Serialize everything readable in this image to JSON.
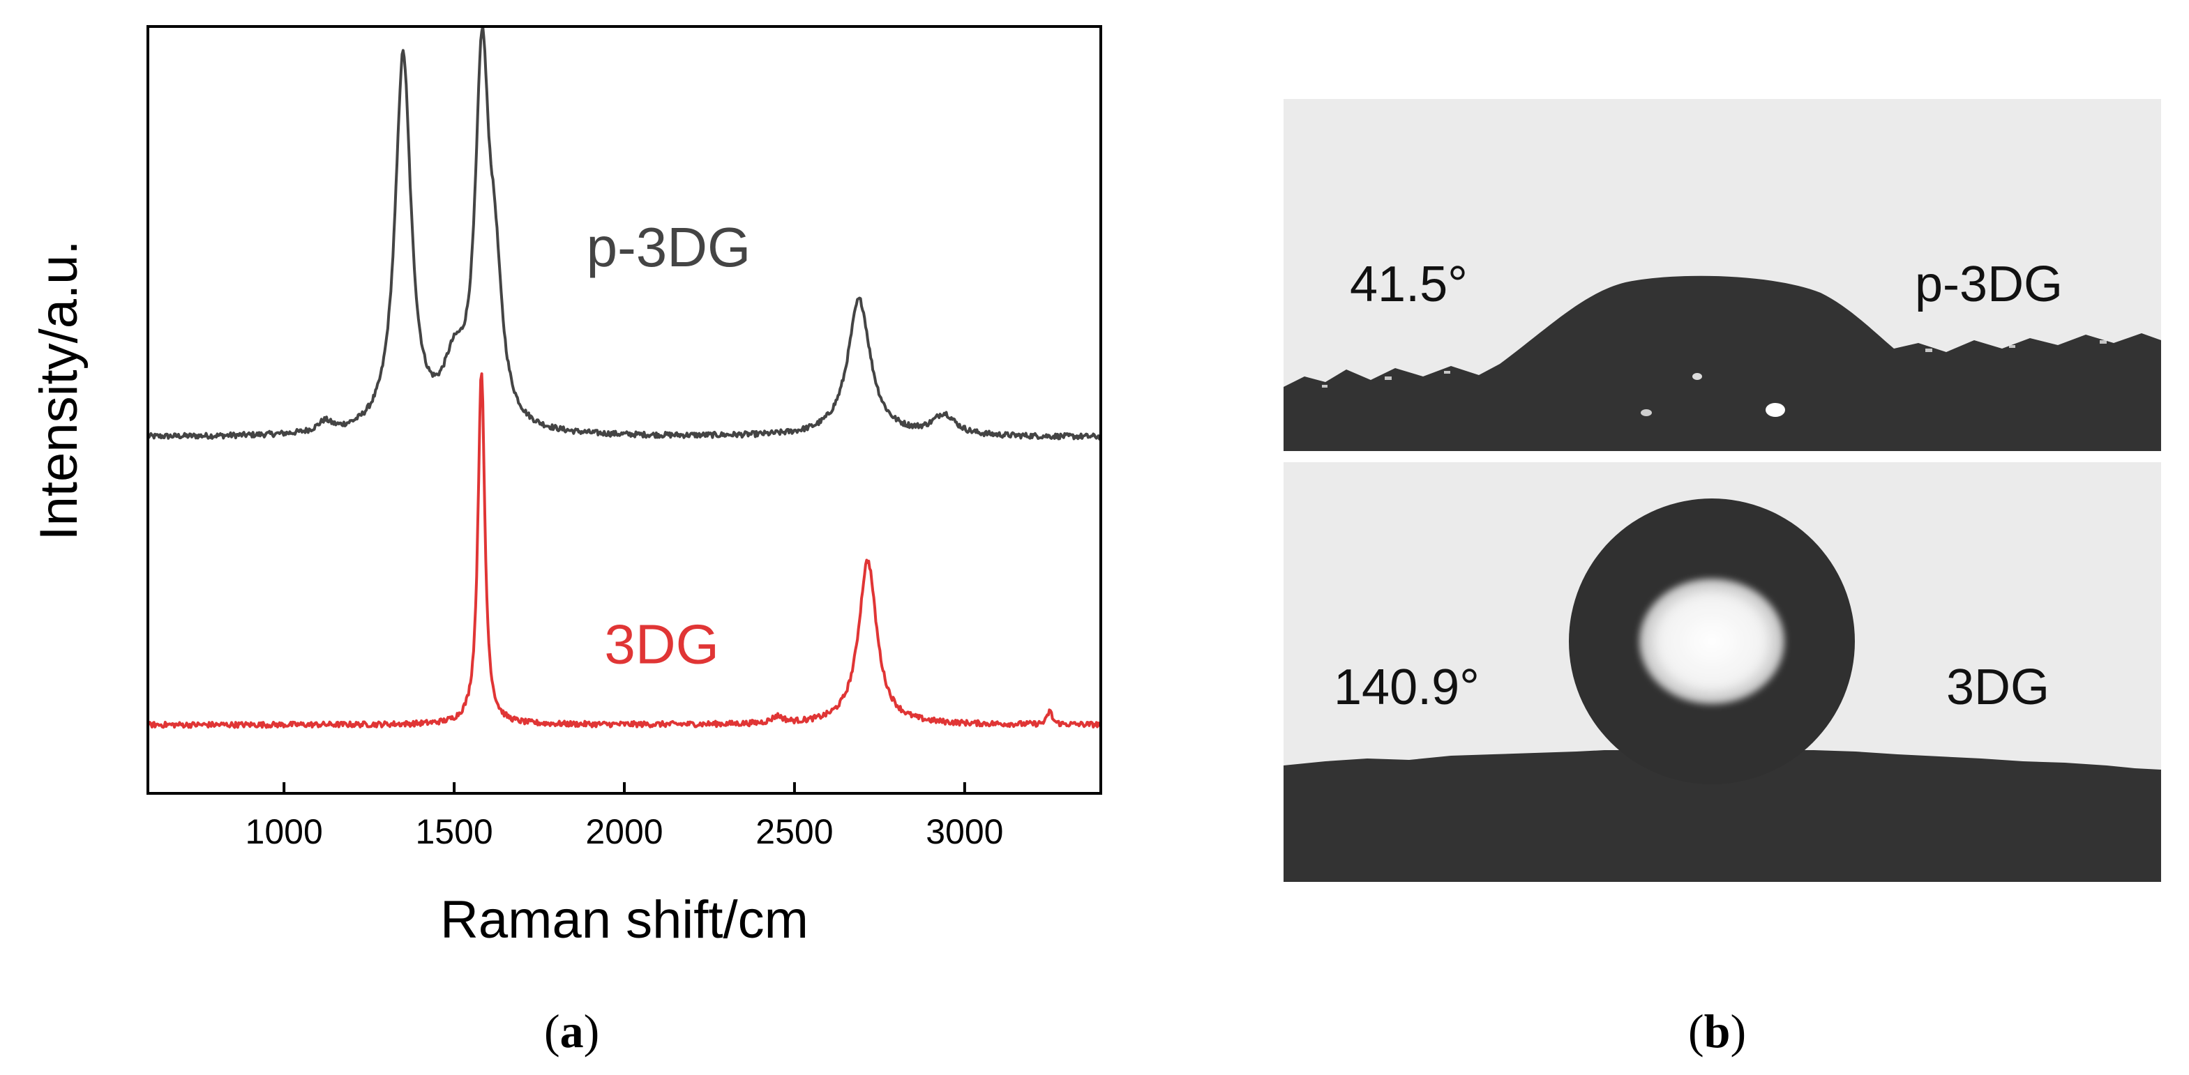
{
  "figure": {
    "panel_a_label": "a",
    "panel_b_label": "b"
  },
  "chart_data": {
    "type": "line",
    "title": "",
    "xlabel": "Raman shift/cm",
    "ylabel": "Intensity/a.u.",
    "xlim": [
      600,
      3400
    ],
    "xticks": [
      1000,
      1500,
      2000,
      2500,
      3000
    ],
    "xtick_labels": [
      "1000",
      "1500",
      "2000",
      "2500",
      "3000"
    ],
    "y_ticks_shown": false,
    "legend": "none",
    "grid": false,
    "series": [
      {
        "name": "p-3DG",
        "color": "#444444",
        "baseline": 0.42,
        "noise": 0.004,
        "peaks": [
          {
            "center": 1120,
            "height": 0.015,
            "width": 25
          },
          {
            "center": 1350,
            "height": 0.55,
            "width": 28
          },
          {
            "center": 1500,
            "height": 0.08,
            "width": 40
          },
          {
            "center": 1582,
            "height": 0.52,
            "width": 24
          },
          {
            "center": 1620,
            "height": 0.18,
            "width": 25
          },
          {
            "center": 2690,
            "height": 0.2,
            "width": 40
          },
          {
            "center": 2940,
            "height": 0.03,
            "width": 40
          }
        ]
      },
      {
        "name": "3DG",
        "color": "#e03535",
        "baseline": 0.0,
        "noise": 0.004,
        "peaks": [
          {
            "center": 1580,
            "height": 0.52,
            "width": 12
          },
          {
            "center": 2450,
            "height": 0.01,
            "width": 20
          },
          {
            "center": 2715,
            "height": 0.24,
            "width": 32
          },
          {
            "center": 3250,
            "height": 0.02,
            "width": 8
          }
        ]
      }
    ],
    "annotations": [
      {
        "text": "p-3DG",
        "series": "p-3DG",
        "x": 2130,
        "y": 0.67
      },
      {
        "text": "3DG",
        "series": "3DG",
        "x": 2110,
        "y": 0.09
      }
    ]
  },
  "contact_angle_images": [
    {
      "angle": "41.5°",
      "sample": "p-3DG"
    },
    {
      "angle": "140.9°",
      "sample": "3DG"
    }
  ],
  "colors": {
    "axis": "#000000",
    "image_background": "#eaeaea",
    "substrate": "#333333",
    "droplet": "#2f2f2f"
  }
}
